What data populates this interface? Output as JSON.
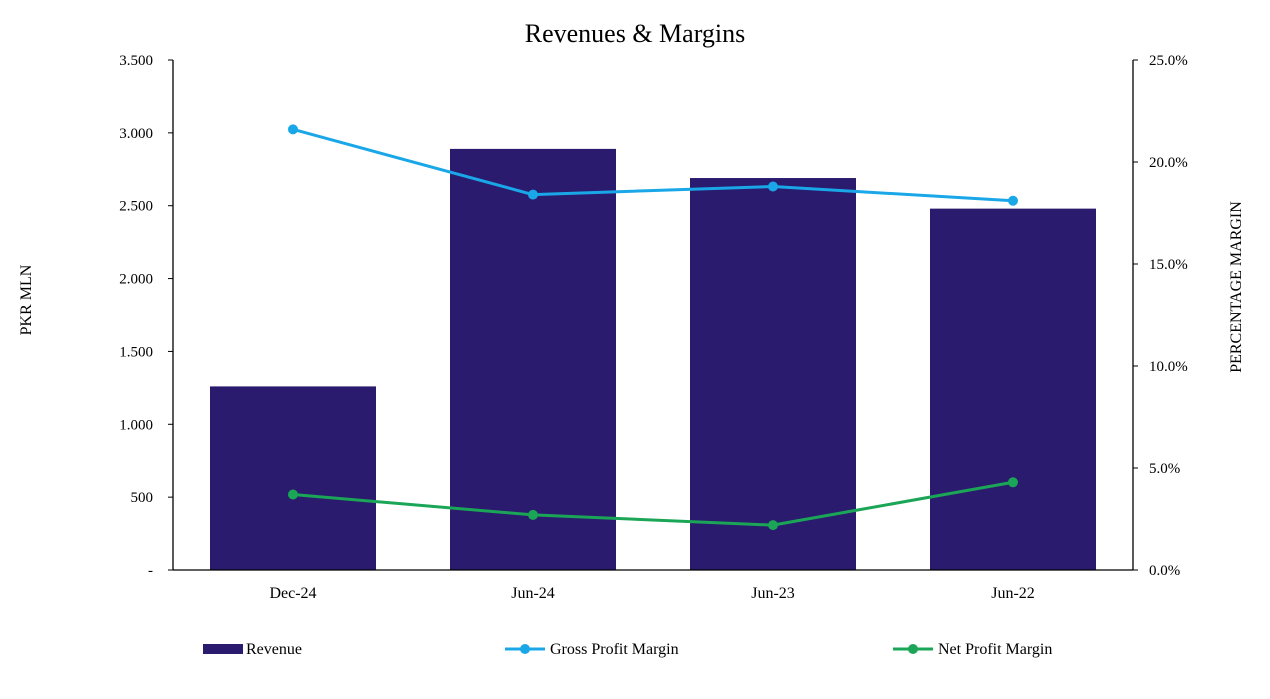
{
  "chart_data": {
    "type": "bar",
    "title": "Revenues & Margins",
    "categories": [
      "Dec-24",
      "Jun-24",
      "Jun-23",
      "Jun-22"
    ],
    "series": [
      {
        "name": "Revenue",
        "type": "bar",
        "axis": "left",
        "values": [
          1260,
          2890,
          2690,
          2480
        ],
        "color": "#2a1b6e"
      },
      {
        "name": "Gross Profit Margin",
        "type": "line",
        "axis": "right",
        "values": [
          21.6,
          18.4,
          18.8,
          18.1
        ],
        "color": "#1aa7e8"
      },
      {
        "name": "Net Profit Margin",
        "type": "line",
        "axis": "right",
        "values": [
          3.7,
          2.7,
          2.2,
          4.3
        ],
        "color": "#1aa656"
      }
    ],
    "ylabel": "PKR MLN",
    "y2label": "PERCENTAGE MARGIN",
    "ylim": [
      0,
      3500
    ],
    "y2lim": [
      0,
      25
    ],
    "yticks": [
      "-",
      "500",
      "1.000",
      "1.500",
      "2.000",
      "2.500",
      "3.000",
      "3.500"
    ],
    "y2ticks": [
      "0.0%",
      "5.0%",
      "10.0%",
      "15.0%",
      "20.0%",
      "25.0%"
    ],
    "grid": false,
    "legend": "bottom"
  }
}
